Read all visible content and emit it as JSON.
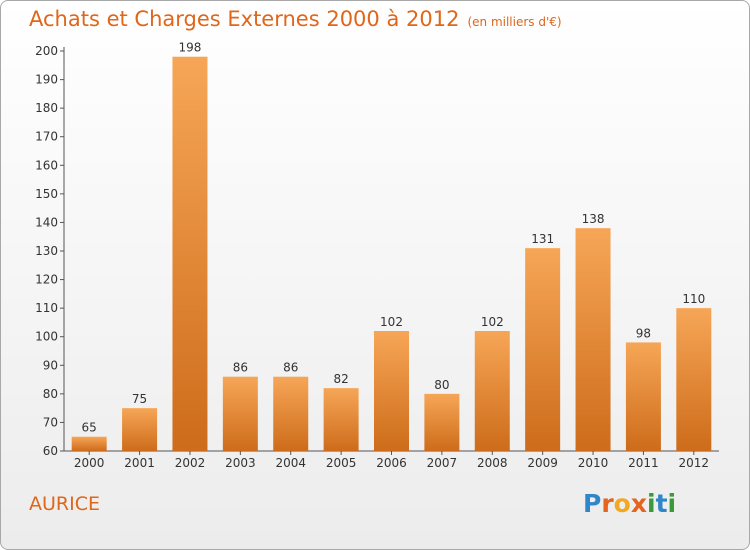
{
  "title": "Achats et Charges Externes 2000 à 2012",
  "unit": "(en milliers d'€)",
  "commune": "AURICE",
  "brand": {
    "letters": [
      "P",
      "r",
      "o",
      "x",
      "i",
      "t",
      "i"
    ],
    "colors": [
      "#2f86c8",
      "#e5631c",
      "#f3a81f",
      "#e5631c",
      "#3a9a3a",
      "#2f86c8",
      "#3a9a3a"
    ]
  },
  "colors": {
    "bar_top": "#f6a657",
    "bar_bottom": "#cd6c1a",
    "title": "#e0661a"
  },
  "chart_data": {
    "type": "bar",
    "categories": [
      "2000",
      "2001",
      "2002",
      "2003",
      "2004",
      "2005",
      "2006",
      "2007",
      "2008",
      "2009",
      "2010",
      "2011",
      "2012"
    ],
    "values": [
      65,
      75,
      198,
      86,
      86,
      82,
      102,
      80,
      102,
      131,
      138,
      98,
      110
    ],
    "ylim": [
      60,
      200
    ],
    "yticks": [
      60,
      70,
      80,
      90,
      100,
      110,
      120,
      130,
      140,
      150,
      160,
      170,
      180,
      190,
      200
    ],
    "grid": false,
    "title": "Achats et Charges Externes 2000 à 2012",
    "xlabel": "",
    "ylabel": ""
  }
}
